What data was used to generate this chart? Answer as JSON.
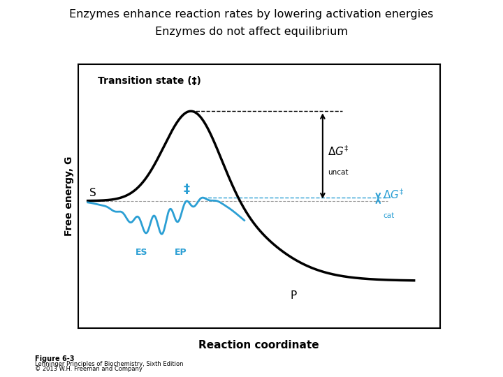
{
  "title_line1": "Enzymes enhance reaction rates by lowering activation energies",
  "title_line2": "Enzymes do not affect equilibrium",
  "xlabel": "Reaction coordinate",
  "ylabel": "Free energy, G",
  "bg_color": "#ffffff",
  "plot_bg_color": "#ffffff",
  "uncatalyzed_color": "#000000",
  "catalyzed_color": "#2b9fd4",
  "figure_label": "Figure 6-3",
  "figure_caption_line1": "Lehninger Principles of Biochemistry, Sixth Edition",
  "figure_caption_line2": "© 2013 W.H. Freeman and Company",
  "S_level": 0.52,
  "P_level": 0.18,
  "TS_peak": 0.92,
  "cat_peak": 0.6,
  "ES_dip": 0.38,
  "title_fontsize": 11.5
}
